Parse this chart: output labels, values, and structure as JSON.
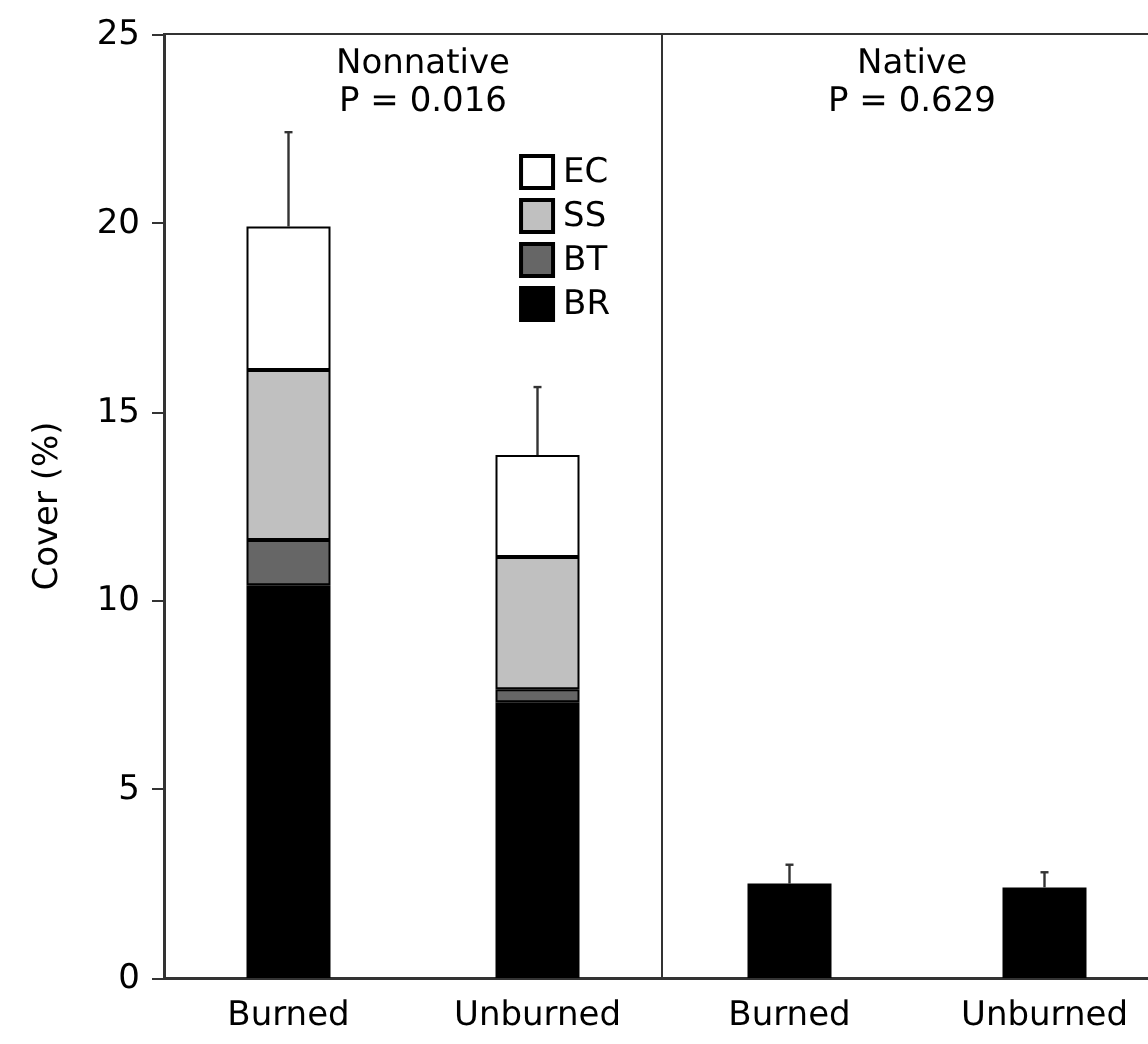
{
  "chart_data": [
    {
      "type": "bar",
      "title": "Nonnative",
      "subtitle": "P = 0.016",
      "ylabel": "Cover (%)",
      "categories": [
        "Burned",
        "Unburned"
      ],
      "stacked": true,
      "series": [
        {
          "name": "BR",
          "color": "#000000",
          "values": [
            10.4,
            7.3
          ]
        },
        {
          "name": "BT",
          "color": "#666666",
          "values": [
            1.2,
            0.35
          ]
        },
        {
          "name": "SS",
          "color": "#c0c0c0",
          "values": [
            4.5,
            3.5
          ]
        },
        {
          "name": "EC",
          "color": "#ffffff",
          "values": [
            3.8,
            2.7
          ],
          "errors": [
            2.5,
            1.8
          ]
        }
      ],
      "ylim": [
        0,
        25
      ],
      "yticks": [
        0,
        5,
        10,
        15,
        20,
        25
      ],
      "legend": "top right"
    },
    {
      "type": "bar",
      "title": "Native",
      "subtitle": "P = 0.629",
      "categories": [
        "Burned",
        "Unburned"
      ],
      "series": [
        {
          "color": "#000000",
          "values": [
            2.5,
            2.4
          ],
          "errors": [
            0.5,
            0.4
          ]
        }
      ],
      "ylim": [
        0,
        25
      ],
      "yticks": [
        0,
        5,
        10,
        15,
        20,
        25
      ],
      "tick_labels": "x"
    }
  ]
}
